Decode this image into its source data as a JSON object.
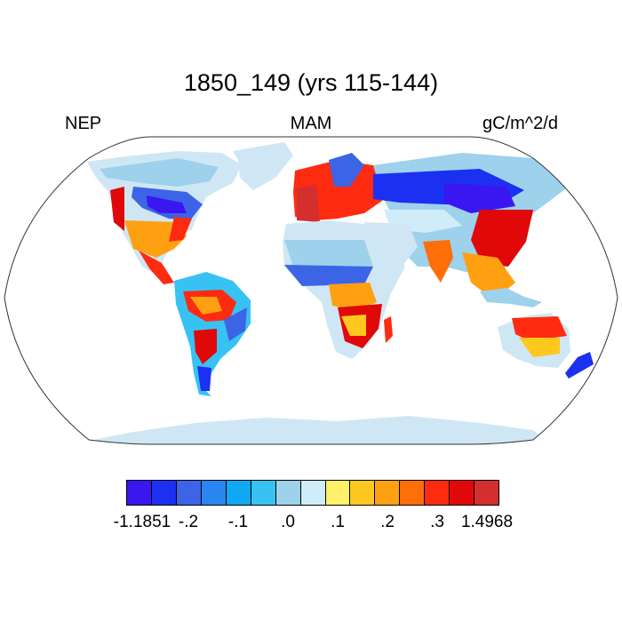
{
  "title": "1850_149 (yrs 115-144)",
  "variable": "NEP",
  "season": "MAM",
  "units": "gC/m^2/d",
  "colorbar": {
    "colors": [
      "#3a17f0",
      "#1c30f2",
      "#3c64e6",
      "#2a86f0",
      "#10a7f4",
      "#38c2f4",
      "#9dd1ec",
      "#d0ecf8",
      "#fff06a",
      "#ffc81e",
      "#ffa012",
      "#ff6e08",
      "#fe2b10",
      "#e00808",
      "#d42e2e"
    ],
    "tick_labels": [
      "-1.1851",
      "-.2",
      "-.1",
      ".0",
      ".1",
      ".2",
      ".3",
      "1.4968"
    ]
  },
  "map": {
    "projection": "Robinson",
    "ocean_color": "#ffffff",
    "default_land_color": "#cfe7f5"
  }
}
